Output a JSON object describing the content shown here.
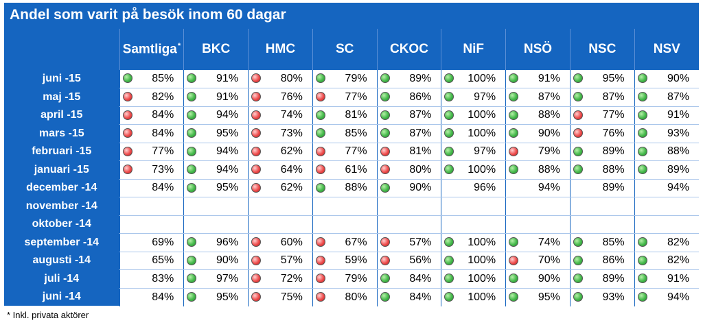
{
  "title": "Andel som varit på besök inom 60 dagar",
  "colors": {
    "header_bg": "#1565c0",
    "good": "green",
    "bad": "red"
  },
  "chart_data": {
    "type": "table",
    "columns": [
      "Samtliga",
      "BKC",
      "HMC",
      "SC",
      "CKOC",
      "NiF",
      "NSÖ",
      "NSC",
      "NSV"
    ],
    "first_column_marker": "*",
    "rows": [
      {
        "label": "juni -15",
        "values": [
          "85%",
          "91%",
          "80%",
          "79%",
          "89%",
          "100%",
          "91%",
          "95%",
          "90%"
        ],
        "status": [
          "green",
          "green",
          "red",
          "green",
          "green",
          "green",
          "green",
          "green",
          "green"
        ]
      },
      {
        "label": "maj -15",
        "values": [
          "82%",
          "91%",
          "76%",
          "77%",
          "86%",
          "97%",
          "87%",
          "87%",
          "87%"
        ],
        "status": [
          "red",
          "green",
          "red",
          "red",
          "green",
          "green",
          "green",
          "green",
          "green"
        ]
      },
      {
        "label": "april -15",
        "values": [
          "84%",
          "94%",
          "74%",
          "81%",
          "87%",
          "100%",
          "88%",
          "77%",
          "91%"
        ],
        "status": [
          "red",
          "green",
          "red",
          "green",
          "green",
          "green",
          "green",
          "red",
          "green"
        ]
      },
      {
        "label": "mars -15",
        "values": [
          "84%",
          "95%",
          "73%",
          "85%",
          "87%",
          "100%",
          "90%",
          "76%",
          "93%"
        ],
        "status": [
          "red",
          "green",
          "red",
          "green",
          "green",
          "green",
          "green",
          "red",
          "green"
        ]
      },
      {
        "label": "februari -15",
        "values": [
          "77%",
          "94%",
          "62%",
          "77%",
          "81%",
          "97%",
          "79%",
          "89%",
          "88%"
        ],
        "status": [
          "red",
          "green",
          "red",
          "red",
          "red",
          "green",
          "red",
          "green",
          "green"
        ]
      },
      {
        "label": "januari -15",
        "values": [
          "73%",
          "94%",
          "64%",
          "61%",
          "80%",
          "100%",
          "88%",
          "88%",
          "89%"
        ],
        "status": [
          "red",
          "green",
          "red",
          "red",
          "red",
          "green",
          "green",
          "green",
          "green"
        ]
      },
      {
        "label": "december -14",
        "values": [
          "84%",
          "95%",
          "62%",
          "88%",
          "90%",
          "96%",
          "94%",
          "89%",
          "94%"
        ],
        "status": [
          "",
          "green",
          "red",
          "green",
          "green",
          "",
          "",
          "",
          ""
        ]
      },
      {
        "label": "november -14",
        "values": [
          "",
          "",
          "",
          "",
          "",
          "",
          "",
          "",
          ""
        ],
        "status": [
          "",
          "",
          "",
          "",
          "",
          "",
          "",
          "",
          ""
        ]
      },
      {
        "label": "oktober -14",
        "values": [
          "",
          "",
          "",
          "",
          "",
          "",
          "",
          "",
          ""
        ],
        "status": [
          "",
          "",
          "",
          "",
          "",
          "",
          "",
          "",
          ""
        ]
      },
      {
        "label": "september -14",
        "values": [
          "69%",
          "96%",
          "60%",
          "67%",
          "57%",
          "100%",
          "74%",
          "85%",
          "82%"
        ],
        "status": [
          "",
          "green",
          "red",
          "red",
          "red",
          "green",
          "green",
          "green",
          "green"
        ]
      },
      {
        "label": "augusti -14",
        "values": [
          "65%",
          "90%",
          "57%",
          "59%",
          "56%",
          "100%",
          "70%",
          "86%",
          "82%"
        ],
        "status": [
          "",
          "green",
          "red",
          "red",
          "red",
          "green",
          "red",
          "green",
          "green"
        ]
      },
      {
        "label": "juli -14",
        "values": [
          "83%",
          "97%",
          "72%",
          "79%",
          "84%",
          "100%",
          "90%",
          "89%",
          "91%"
        ],
        "status": [
          "",
          "green",
          "red",
          "red",
          "green",
          "green",
          "green",
          "green",
          "green"
        ]
      },
      {
        "label": "juni -14",
        "values": [
          "84%",
          "95%",
          "75%",
          "80%",
          "84%",
          "100%",
          "95%",
          "93%",
          "94%"
        ],
        "status": [
          "",
          "green",
          "red",
          "red",
          "green",
          "green",
          "green",
          "green",
          "green"
        ]
      }
    ]
  },
  "footnote": "* Inkl. privata aktörer"
}
